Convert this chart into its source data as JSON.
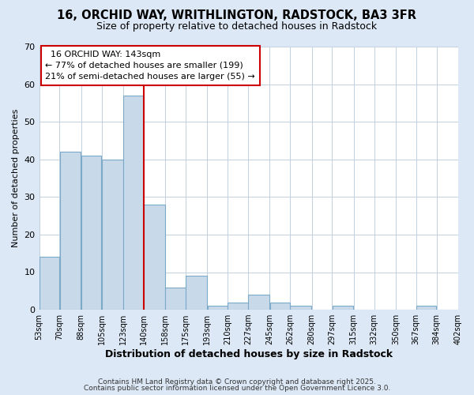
{
  "title1": "16, ORCHID WAY, WRITHLINGTON, RADSTOCK, BA3 3FR",
  "title2": "Size of property relative to detached houses in Radstock",
  "xlabel": "Distribution of detached houses by size in Radstock",
  "ylabel": "Number of detached properties",
  "annotation_title": "16 ORCHID WAY: 143sqm",
  "annotation_line1": "← 77% of detached houses are smaller (199)",
  "annotation_line2": "21% of semi-detached houses are larger (55) →",
  "property_line_x": 140,
  "bin_edges": [
    53,
    70,
    88,
    105,
    123,
    140,
    158,
    175,
    193,
    210,
    227,
    245,
    262,
    280,
    297,
    315,
    332,
    350,
    367,
    384,
    402
  ],
  "bar_heights": [
    14,
    42,
    41,
    40,
    57,
    28,
    6,
    9,
    1,
    2,
    4,
    2,
    1,
    0,
    1,
    0,
    0,
    0,
    1,
    0
  ],
  "bar_color": "#c8d9ea",
  "bar_edge_color": "#7aaac8",
  "vline_color": "#cc0000",
  "background_color": "#dce8f5",
  "plot_bg_color": "#ffffff",
  "annotation_box_color": "#ffffff",
  "annotation_box_edge": "#cc0000",
  "ylim": [
    0,
    70
  ],
  "yticks": [
    0,
    10,
    20,
    30,
    40,
    50,
    60,
    70
  ],
  "footer1": "Contains HM Land Registry data © Crown copyright and database right 2025.",
  "footer2": "Contains public sector information licensed under the Open Government Licence 3.0."
}
